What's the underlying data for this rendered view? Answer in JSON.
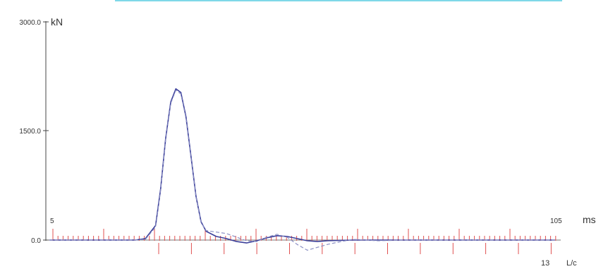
{
  "chart_data": {
    "type": "line",
    "title": "",
    "y_unit": "kN",
    "y_ticks": [
      "3000.0",
      "1500.0",
      "0.0"
    ],
    "ylim": [
      0,
      3000
    ],
    "x_unit": "ms",
    "x_range_labels": [
      "5",
      "105"
    ],
    "xlim": [
      5,
      105
    ],
    "secondary_axis": {
      "unit": "L/c",
      "end_label": "13",
      "range": [
        0,
        13
      ]
    },
    "series": [
      {
        "style": "solid",
        "color": "#3b3f9a",
        "x": [
          5,
          10,
          15,
          20,
          22,
          24,
          26,
          27,
          28,
          29,
          30,
          31,
          32,
          33,
          34,
          35,
          36,
          38,
          40,
          42,
          44,
          46,
          48,
          50,
          52,
          54,
          56,
          58,
          60,
          65,
          70,
          75,
          80,
          85,
          90,
          95,
          100,
          105
        ],
        "y": [
          0,
          0,
          0,
          0,
          0,
          20,
          200,
          700,
          1400,
          1900,
          2080,
          2030,
          1700,
          1150,
          600,
          250,
          120,
          50,
          20,
          -20,
          -40,
          -10,
          30,
          60,
          50,
          20,
          -10,
          -20,
          -10,
          0,
          0,
          0,
          0,
          0,
          0,
          0,
          0,
          0
        ]
      },
      {
        "style": "dashed",
        "color": "#8a8fc4",
        "x": [
          5,
          20,
          22,
          24,
          26,
          27,
          28,
          29,
          30,
          31,
          32,
          33,
          34,
          35,
          36,
          38,
          40,
          42,
          44,
          46,
          48,
          50,
          52,
          54,
          56,
          58,
          60,
          62,
          65,
          70,
          75,
          80,
          85,
          90,
          95,
          100,
          105
        ],
        "y": [
          0,
          0,
          0,
          10,
          180,
          680,
          1380,
          1880,
          2060,
          2010,
          1680,
          1130,
          590,
          240,
          130,
          110,
          90,
          40,
          -10,
          -20,
          40,
          80,
          40,
          -60,
          -140,
          -100,
          -60,
          -30,
          10,
          -10,
          0,
          0,
          0,
          0,
          0,
          0,
          0
        ]
      }
    ],
    "grid": false,
    "colors": {
      "axis": "#444444",
      "tick_red": "#e05050",
      "top_bar": "#7fd8e8"
    }
  }
}
